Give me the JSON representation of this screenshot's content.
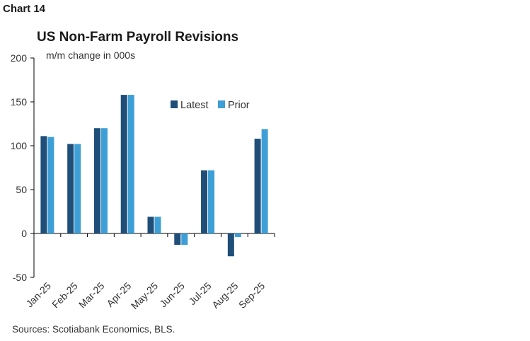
{
  "header": {
    "chart_number": "Chart 14",
    "title": "US Non-Farm Payroll Revisions",
    "subtitle": "m/m change in 000s"
  },
  "footer": {
    "source": "Sources: Scotiabank Economics, BLS."
  },
  "colors": {
    "latest": "#1f4e79",
    "prior": "#3e9fd6",
    "axis": "#000000"
  },
  "chart_data": {
    "type": "bar",
    "categories": [
      "Jan-25",
      "Feb-25",
      "Mar-25",
      "Apr-25",
      "May-25",
      "Jun-25",
      "Jul-25",
      "Aug-25",
      "Sep-25"
    ],
    "series": [
      {
        "name": "Latest",
        "values": [
          111,
          102,
          120,
          158,
          19,
          -13,
          72,
          -26,
          108
        ]
      },
      {
        "name": "Prior",
        "values": [
          110,
          102,
          120,
          158,
          19,
          -13,
          72,
          -4,
          119
        ]
      }
    ],
    "ylim": [
      -50,
      200
    ],
    "yticks": [
      -50,
      0,
      50,
      100,
      150,
      200
    ],
    "legend_position": "top-right",
    "grid": false
  }
}
